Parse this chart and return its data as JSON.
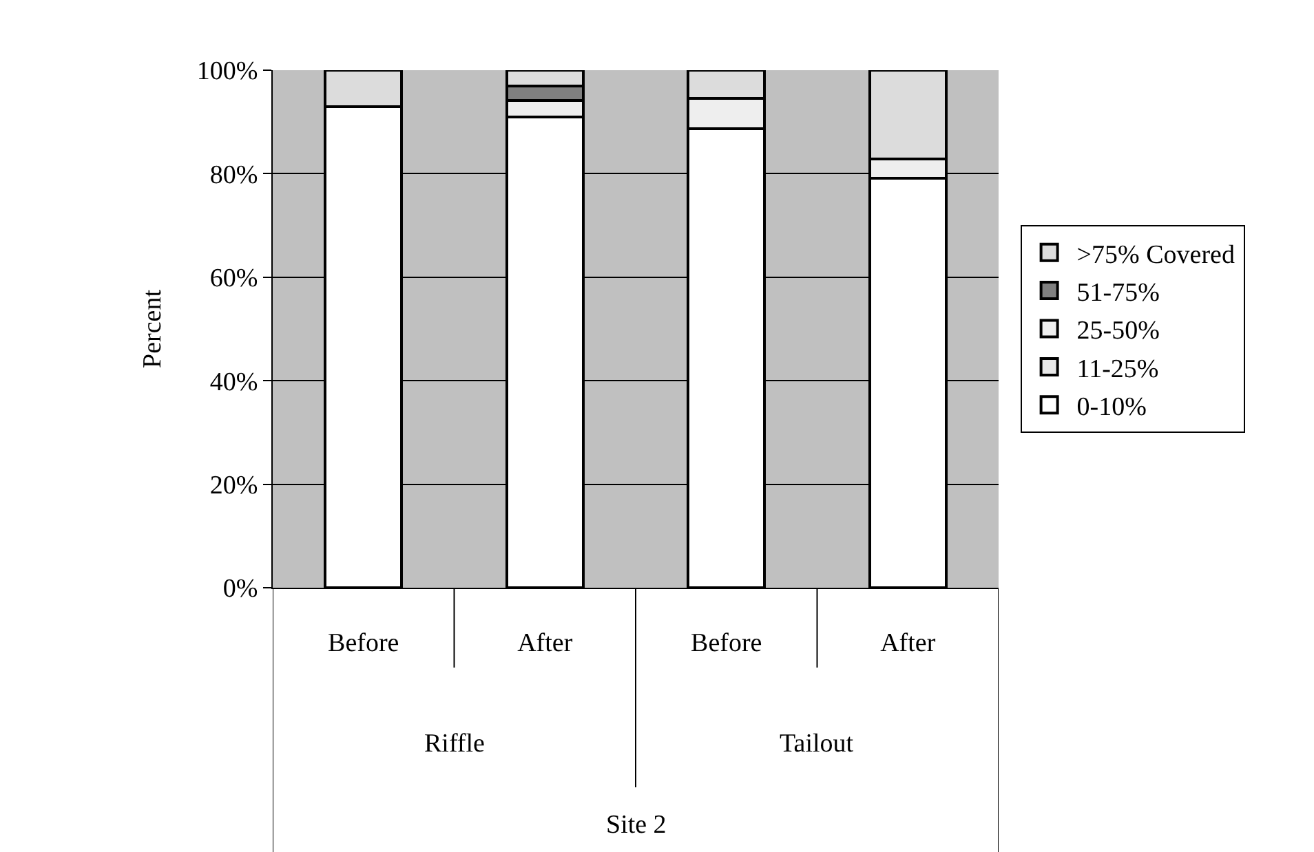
{
  "chart_data": {
    "type": "bar",
    "stacked": true,
    "ylabel": "Percent",
    "categories": [
      "Before",
      "After",
      "Before",
      "After"
    ],
    "annotations": [
      "Riffle",
      "Tailout",
      "Site 2"
    ],
    "series": [
      {
        "name": "0-10%",
        "color": "#ffffff",
        "values": [
          93,
          91,
          88.7,
          79.1
        ]
      },
      {
        "name": "11-25%",
        "color": "#e8e8e8",
        "values": [
          0,
          0,
          0,
          0
        ]
      },
      {
        "name": "25-50%",
        "color": "#eeeeee",
        "values": [
          0,
          3.2,
          5.8,
          3.8
        ]
      },
      {
        "name": "51-75%",
        "color": "#808080",
        "values": [
          0,
          2.7,
          0,
          0
        ]
      },
      {
        "name": ">75% Covered",
        "color": "#dcdcdc",
        "values": [
          7,
          3.1,
          5.5,
          17.1
        ]
      }
    ],
    "ylim": [
      0,
      100
    ],
    "yticks": [
      {
        "value": 0,
        "label": "0%"
      },
      {
        "value": 20,
        "label": "20%"
      },
      {
        "value": 40,
        "label": "40%"
      },
      {
        "value": 60,
        "label": "60%"
      },
      {
        "value": 80,
        "label": "80%"
      },
      {
        "value": 100,
        "label": "100%"
      }
    ],
    "grid": "y",
    "legend": "right"
  }
}
